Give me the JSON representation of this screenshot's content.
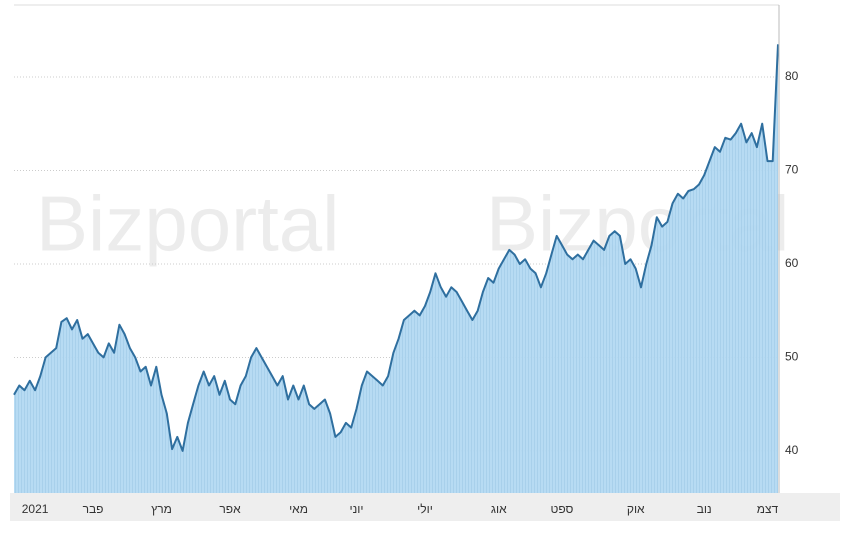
{
  "chart_data": {
    "type": "area",
    "watermark": "Bizportal",
    "color": "#2f6f9f",
    "fill": "#b3d9f2",
    "grid": true,
    "values": [
      46,
      47,
      46.5,
      47.5,
      46.5,
      48,
      50,
      50.5,
      51,
      53.8,
      54.2,
      53,
      54,
      52,
      52.5,
      51.5,
      50.5,
      50,
      51.5,
      50.5,
      53.5,
      52.5,
      51,
      50,
      48.5,
      49,
      47,
      49,
      46,
      44,
      40.2,
      41.5,
      40,
      43,
      45,
      47,
      48.5,
      47,
      48,
      46,
      47.5,
      45.5,
      45,
      47,
      48,
      50,
      51,
      50,
      49,
      48,
      47,
      48,
      45.5,
      47,
      45.5,
      47,
      45,
      44.5,
      45,
      45.5,
      44,
      41.5,
      42,
      43,
      42.5,
      44.5,
      47,
      48.5,
      48,
      47.5,
      47,
      48,
      50.5,
      52,
      54,
      54.5,
      55,
      54.5,
      55.5,
      57,
      59,
      57.5,
      56.5,
      57.5,
      57,
      56,
      55,
      54,
      55,
      57,
      58.5,
      58,
      59.5,
      60.5,
      61.5,
      61,
      60,
      60.5,
      59.5,
      59,
      57.5,
      59,
      61,
      63,
      62,
      61,
      60.5,
      61,
      60.5,
      61.5,
      62.5,
      62,
      61.5,
      63,
      63.5,
      63,
      60,
      60.5,
      59.5,
      57.5,
      60,
      62,
      65,
      64,
      64.5,
      66.5,
      67.5,
      67,
      67.8,
      68,
      68.5,
      69.5,
      71,
      72.5,
      72,
      73.5,
      73.3,
      74,
      75,
      73,
      74,
      72.5,
      75,
      71,
      71,
      83.5
    ],
    "xlim": [
      0,
      145
    ],
    "xticks": [
      {
        "value": 4,
        "label": "2021"
      },
      {
        "value": 15,
        "label": "פבר"
      },
      {
        "value": 28,
        "label": "מרץ"
      },
      {
        "value": 41,
        "label": "אפר"
      },
      {
        "value": 54,
        "label": "מאי"
      },
      {
        "value": 65,
        "label": "יוני"
      },
      {
        "value": 78,
        "label": "יולי"
      },
      {
        "value": 92,
        "label": "אוג"
      },
      {
        "value": 104,
        "label": "ספט"
      },
      {
        "value": 118,
        "label": "אוק"
      },
      {
        "value": 131,
        "label": "נוב"
      },
      {
        "value": 143,
        "label": "דצמ"
      }
    ],
    "ylim": [
      35.5,
      87.7
    ],
    "yticks": [
      40,
      50,
      60,
      70,
      80
    ]
  }
}
